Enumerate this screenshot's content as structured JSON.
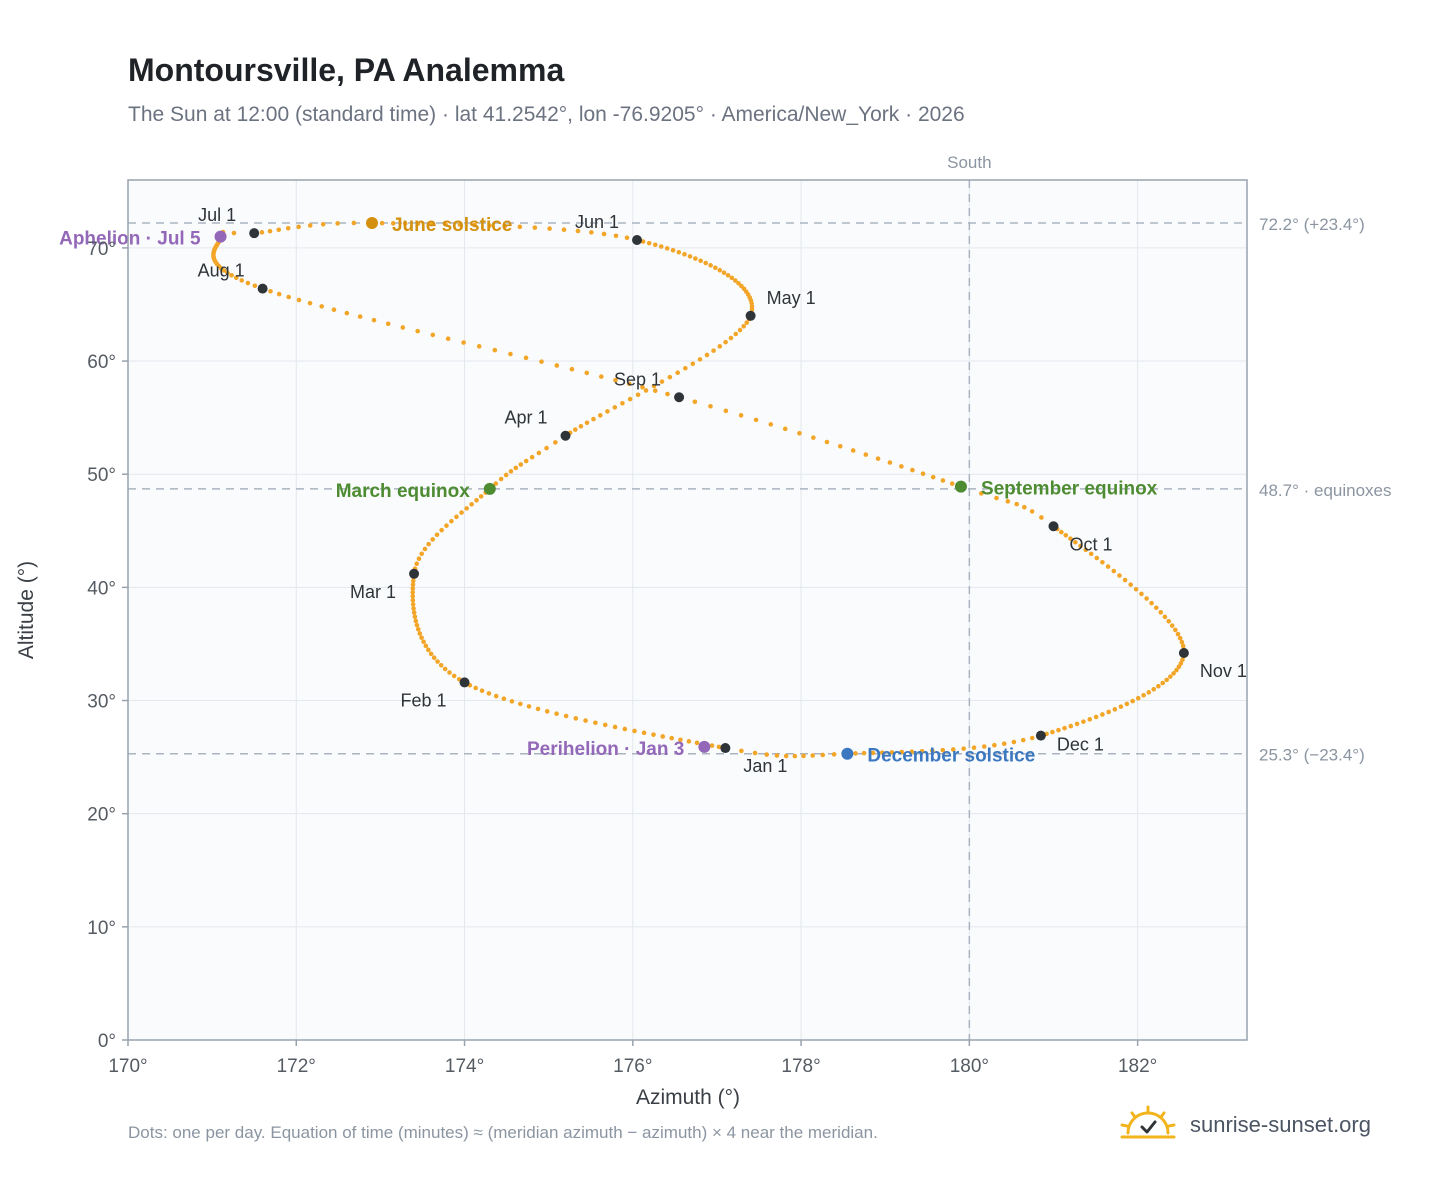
{
  "header": {
    "title": "Montoursville, PA Analemma",
    "subtitle": "The Sun at 12:00 (standard time) · lat 41.2542°, lon -76.9205° · America/New_York · 2026"
  },
  "footer": {
    "note": "Dots: one per day. Equation of time (minutes) ≈ (meridian azimuth − azimuth) × 4 near the meridian.",
    "brand": "sunrise-sunset.org"
  },
  "chart_data": {
    "type": "scatter",
    "title": "Montoursville, PA Analemma",
    "xlabel": "Azimuth (°)",
    "ylabel": "Altitude (°)",
    "xlim": [
      170,
      183.3
    ],
    "ylim": [
      0,
      76
    ],
    "grid": true,
    "x_ticks": [
      "170°",
      "172°",
      "174°",
      "176°",
      "178°",
      "180°",
      "182°"
    ],
    "y_ticks": [
      "0°",
      "10°",
      "20°",
      "30°",
      "40°",
      "50°",
      "60°",
      "70°"
    ],
    "colors": {
      "path": "#f2a527",
      "month_marker": "#2f3439",
      "solstice_june": "#d4900f",
      "solstice_december": "#3c78c0",
      "equinox": "#4e8c32",
      "apsis": "#9368b8",
      "reference_line": "#aab4c0",
      "axis": "#98a2ae",
      "grid": "#e3e8ee",
      "plot_background": "#fafbfd"
    },
    "reference_lines": [
      {
        "axis": "x",
        "value": 180,
        "label": "South"
      },
      {
        "axis": "y",
        "value": 72.2,
        "label": "72.2° (+23.4°)"
      },
      {
        "axis": "y",
        "value": 48.7,
        "label": "48.7° · equinoxes"
      },
      {
        "axis": "y",
        "value": 25.3,
        "label": "25.3° (−23.4°)"
      }
    ],
    "path_anchors": [
      {
        "day": 0,
        "x": 177.1,
        "y": 25.8
      },
      {
        "day": 31,
        "x": 174.0,
        "y": 31.6
      },
      {
        "day": 59,
        "x": 173.4,
        "y": 41.2
      },
      {
        "day": 78,
        "x": 174.3,
        "y": 48.7
      },
      {
        "day": 90,
        "x": 175.2,
        "y": 53.4
      },
      {
        "day": 120,
        "x": 177.4,
        "y": 64.0
      },
      {
        "day": 151,
        "x": 176.05,
        "y": 70.7
      },
      {
        "day": 171,
        "x": 172.9,
        "y": 72.2
      },
      {
        "day": 181,
        "x": 171.5,
        "y": 71.3
      },
      {
        "day": 184,
        "x": 171.1,
        "y": 71.0
      },
      {
        "day": 212,
        "x": 171.6,
        "y": 66.4
      },
      {
        "day": 243,
        "x": 176.55,
        "y": 56.8
      },
      {
        "day": 265,
        "x": 179.9,
        "y": 48.9
      },
      {
        "day": 273,
        "x": 181.0,
        "y": 45.4
      },
      {
        "day": 304,
        "x": 182.55,
        "y": 34.2
      },
      {
        "day": 334,
        "x": 180.85,
        "y": 26.9
      },
      {
        "day": 354,
        "x": 178.55,
        "y": 25.3
      },
      {
        "day": 365,
        "x": 177.1,
        "y": 25.8
      }
    ],
    "month_markers": [
      {
        "label": "Jan 1",
        "x": 177.1,
        "y": 25.8
      },
      {
        "label": "Feb 1",
        "x": 174.0,
        "y": 31.6
      },
      {
        "label": "Mar 1",
        "x": 173.4,
        "y": 41.2
      },
      {
        "label": "Apr 1",
        "x": 175.2,
        "y": 53.4
      },
      {
        "label": "May 1",
        "x": 177.4,
        "y": 64.0
      },
      {
        "label": "Jun 1",
        "x": 176.05,
        "y": 70.7
      },
      {
        "label": "Jul 1",
        "x": 171.5,
        "y": 71.3
      },
      {
        "label": "Aug 1",
        "x": 171.6,
        "y": 66.4
      },
      {
        "label": "Sep 1",
        "x": 176.55,
        "y": 56.8
      },
      {
        "label": "Oct 1",
        "x": 181.0,
        "y": 45.4
      },
      {
        "label": "Nov 1",
        "x": 182.55,
        "y": 34.2
      },
      {
        "label": "Dec 1",
        "x": 180.85,
        "y": 26.9
      }
    ],
    "events": [
      {
        "label": "June solstice",
        "x": 172.9,
        "y": 72.2,
        "kind": "solstice_june"
      },
      {
        "label": "December solstice",
        "x": 178.55,
        "y": 25.3,
        "kind": "solstice_december"
      },
      {
        "label": "March equinox",
        "x": 174.3,
        "y": 48.7,
        "kind": "equinox"
      },
      {
        "label": "September equinox",
        "x": 179.9,
        "y": 48.9,
        "kind": "equinox"
      },
      {
        "label": "Aphelion · Jul 5",
        "x": 171.1,
        "y": 71.0,
        "kind": "apsis"
      },
      {
        "label": "Perihelion · Jan 3",
        "x": 176.85,
        "y": 25.9,
        "kind": "apsis"
      }
    ]
  }
}
